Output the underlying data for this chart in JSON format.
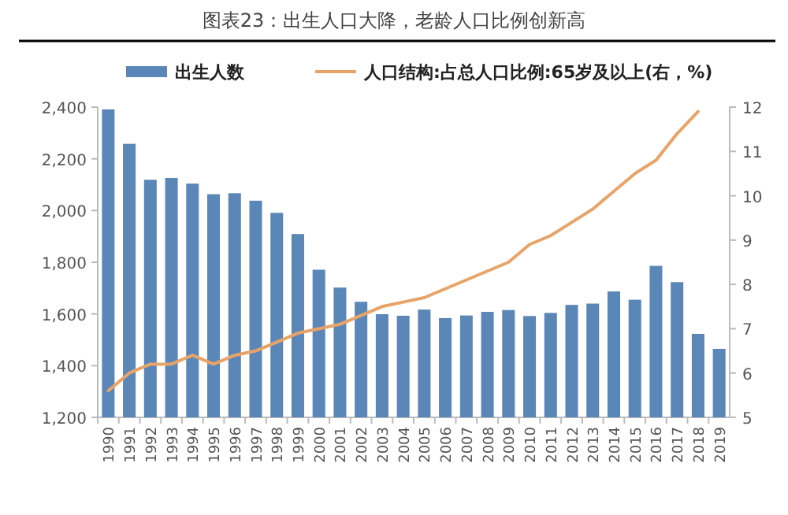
{
  "chart_data": {
    "type": "bar",
    "title": "图表23：出生人口大降，老龄人口比例创新高",
    "categories": [
      "1990",
      "1991",
      "1992",
      "1993",
      "1994",
      "1995",
      "1996",
      "1997",
      "1998",
      "1999",
      "2000",
      "2001",
      "2002",
      "2003",
      "2004",
      "2005",
      "2006",
      "2007",
      "2008",
      "2009",
      "2010",
      "2011",
      "2012",
      "2013",
      "2014",
      "2015",
      "2016",
      "2017",
      "2018",
      "2019"
    ],
    "series": [
      {
        "name": "出生人数",
        "color": "#5b87b8",
        "values": [
          2391,
          2258,
          2119,
          2126,
          2104,
          2063,
          2067,
          2038,
          1991,
          1909,
          1771,
          1702,
          1647,
          1599,
          1593,
          1617,
          1584,
          1594,
          1608,
          1615,
          1592,
          1604,
          1635,
          1640,
          1687,
          1655,
          1786,
          1723,
          1523,
          1465
        ]
      },
      {
        "name": "人口结构:占总人口比例:65岁及以上(右，%)",
        "type": "line",
        "axis": "y2",
        "color": "#e8a468",
        "values": [
          5.6,
          6.0,
          6.2,
          6.2,
          6.4,
          6.2,
          6.4,
          6.5,
          6.7,
          6.9,
          7.0,
          7.1,
          7.3,
          7.5,
          7.6,
          7.7,
          7.9,
          8.1,
          8.3,
          8.5,
          8.9,
          9.1,
          9.4,
          9.7,
          10.1,
          10.5,
          10.8,
          11.4,
          11.9,
          null
        ]
      }
    ],
    "ylim": [
      1200,
      2400
    ],
    "yticks": [
      {
        "value": 1200,
        "label": "1,200"
      },
      {
        "value": 1400,
        "label": "1,400"
      },
      {
        "value": 1600,
        "label": "1,600"
      },
      {
        "value": 1800,
        "label": "1,800"
      },
      {
        "value": 2000,
        "label": "2,000"
      },
      {
        "value": 2200,
        "label": "2,200"
      },
      {
        "value": 2400,
        "label": "2,400"
      }
    ],
    "y2lim": [
      5,
      12
    ],
    "y2ticks": [
      5,
      6,
      7,
      8,
      9,
      10,
      11,
      12
    ],
    "legend": "top",
    "grid": false
  }
}
